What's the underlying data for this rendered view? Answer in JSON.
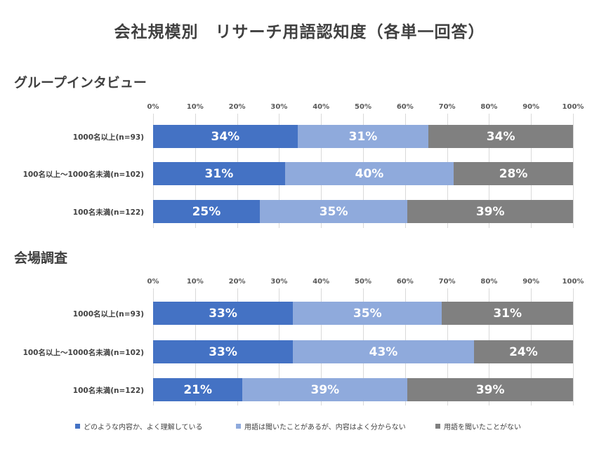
{
  "title": "会社規模別　リサーチ用語認知度（各単一回答）",
  "legend": [
    {
      "label": "どのような内容か、よく理解している",
      "color": "#4472c4"
    },
    {
      "label": "用語は聞いたことがあるが、内容はよく分からない",
      "color": "#8faadc"
    },
    {
      "label": "用語を聞いたことがない",
      "color": "#808080"
    }
  ],
  "chart_data": [
    {
      "type": "bar",
      "orientation": "horizontal",
      "stacked": true,
      "title": "グループインタビュー",
      "x_ticks": [
        "0%",
        "10%",
        "20%",
        "30%",
        "40%",
        "50%",
        "60%",
        "70%",
        "80%",
        "90%",
        "100%"
      ],
      "xlim": [
        0,
        100
      ],
      "legend_position": "bottom",
      "categories": [
        "1000名以上(n=93)",
        "100名以上～1000名未満(n=102)",
        "100名未満(n=122)"
      ],
      "series": [
        {
          "name": "どのような内容か、よく理解している",
          "values": [
            34.4,
            31.4,
            25.4
          ],
          "labels": [
            "34%",
            "31%",
            "25%"
          ]
        },
        {
          "name": "用語は聞いたことがあるが、内容はよく分からない",
          "values": [
            31.2,
            40.2,
            35.2
          ],
          "labels": [
            "31%",
            "40%",
            "35%"
          ]
        },
        {
          "name": "用語を聞いたことがない",
          "values": [
            34.4,
            28.4,
            39.4
          ],
          "labels": [
            "34%",
            "28%",
            "39%"
          ]
        }
      ]
    },
    {
      "type": "bar",
      "orientation": "horizontal",
      "stacked": true,
      "title": "会場調査",
      "x_ticks": [
        "0%",
        "10%",
        "20%",
        "30%",
        "40%",
        "50%",
        "60%",
        "70%",
        "80%",
        "90%",
        "100%"
      ],
      "xlim": [
        0,
        100
      ],
      "legend_position": "bottom",
      "categories": [
        "1000名以上(n=93)",
        "100名以上～1000名未満(n=102)",
        "100名未満(n=122)"
      ],
      "series": [
        {
          "name": "どのような内容か、よく理解している",
          "values": [
            33.3,
            33.3,
            21.3
          ],
          "labels": [
            "33%",
            "33%",
            "21%"
          ]
        },
        {
          "name": "用語は聞いたことがあるが、内容はよく分からない",
          "values": [
            35.5,
            43.1,
            39.3
          ],
          "labels": [
            "35%",
            "43%",
            "39%"
          ]
        },
        {
          "name": "用語を聞いたことがない",
          "values": [
            31.2,
            23.6,
            39.4
          ],
          "labels": [
            "31%",
            "24%",
            "39%"
          ]
        }
      ]
    }
  ]
}
